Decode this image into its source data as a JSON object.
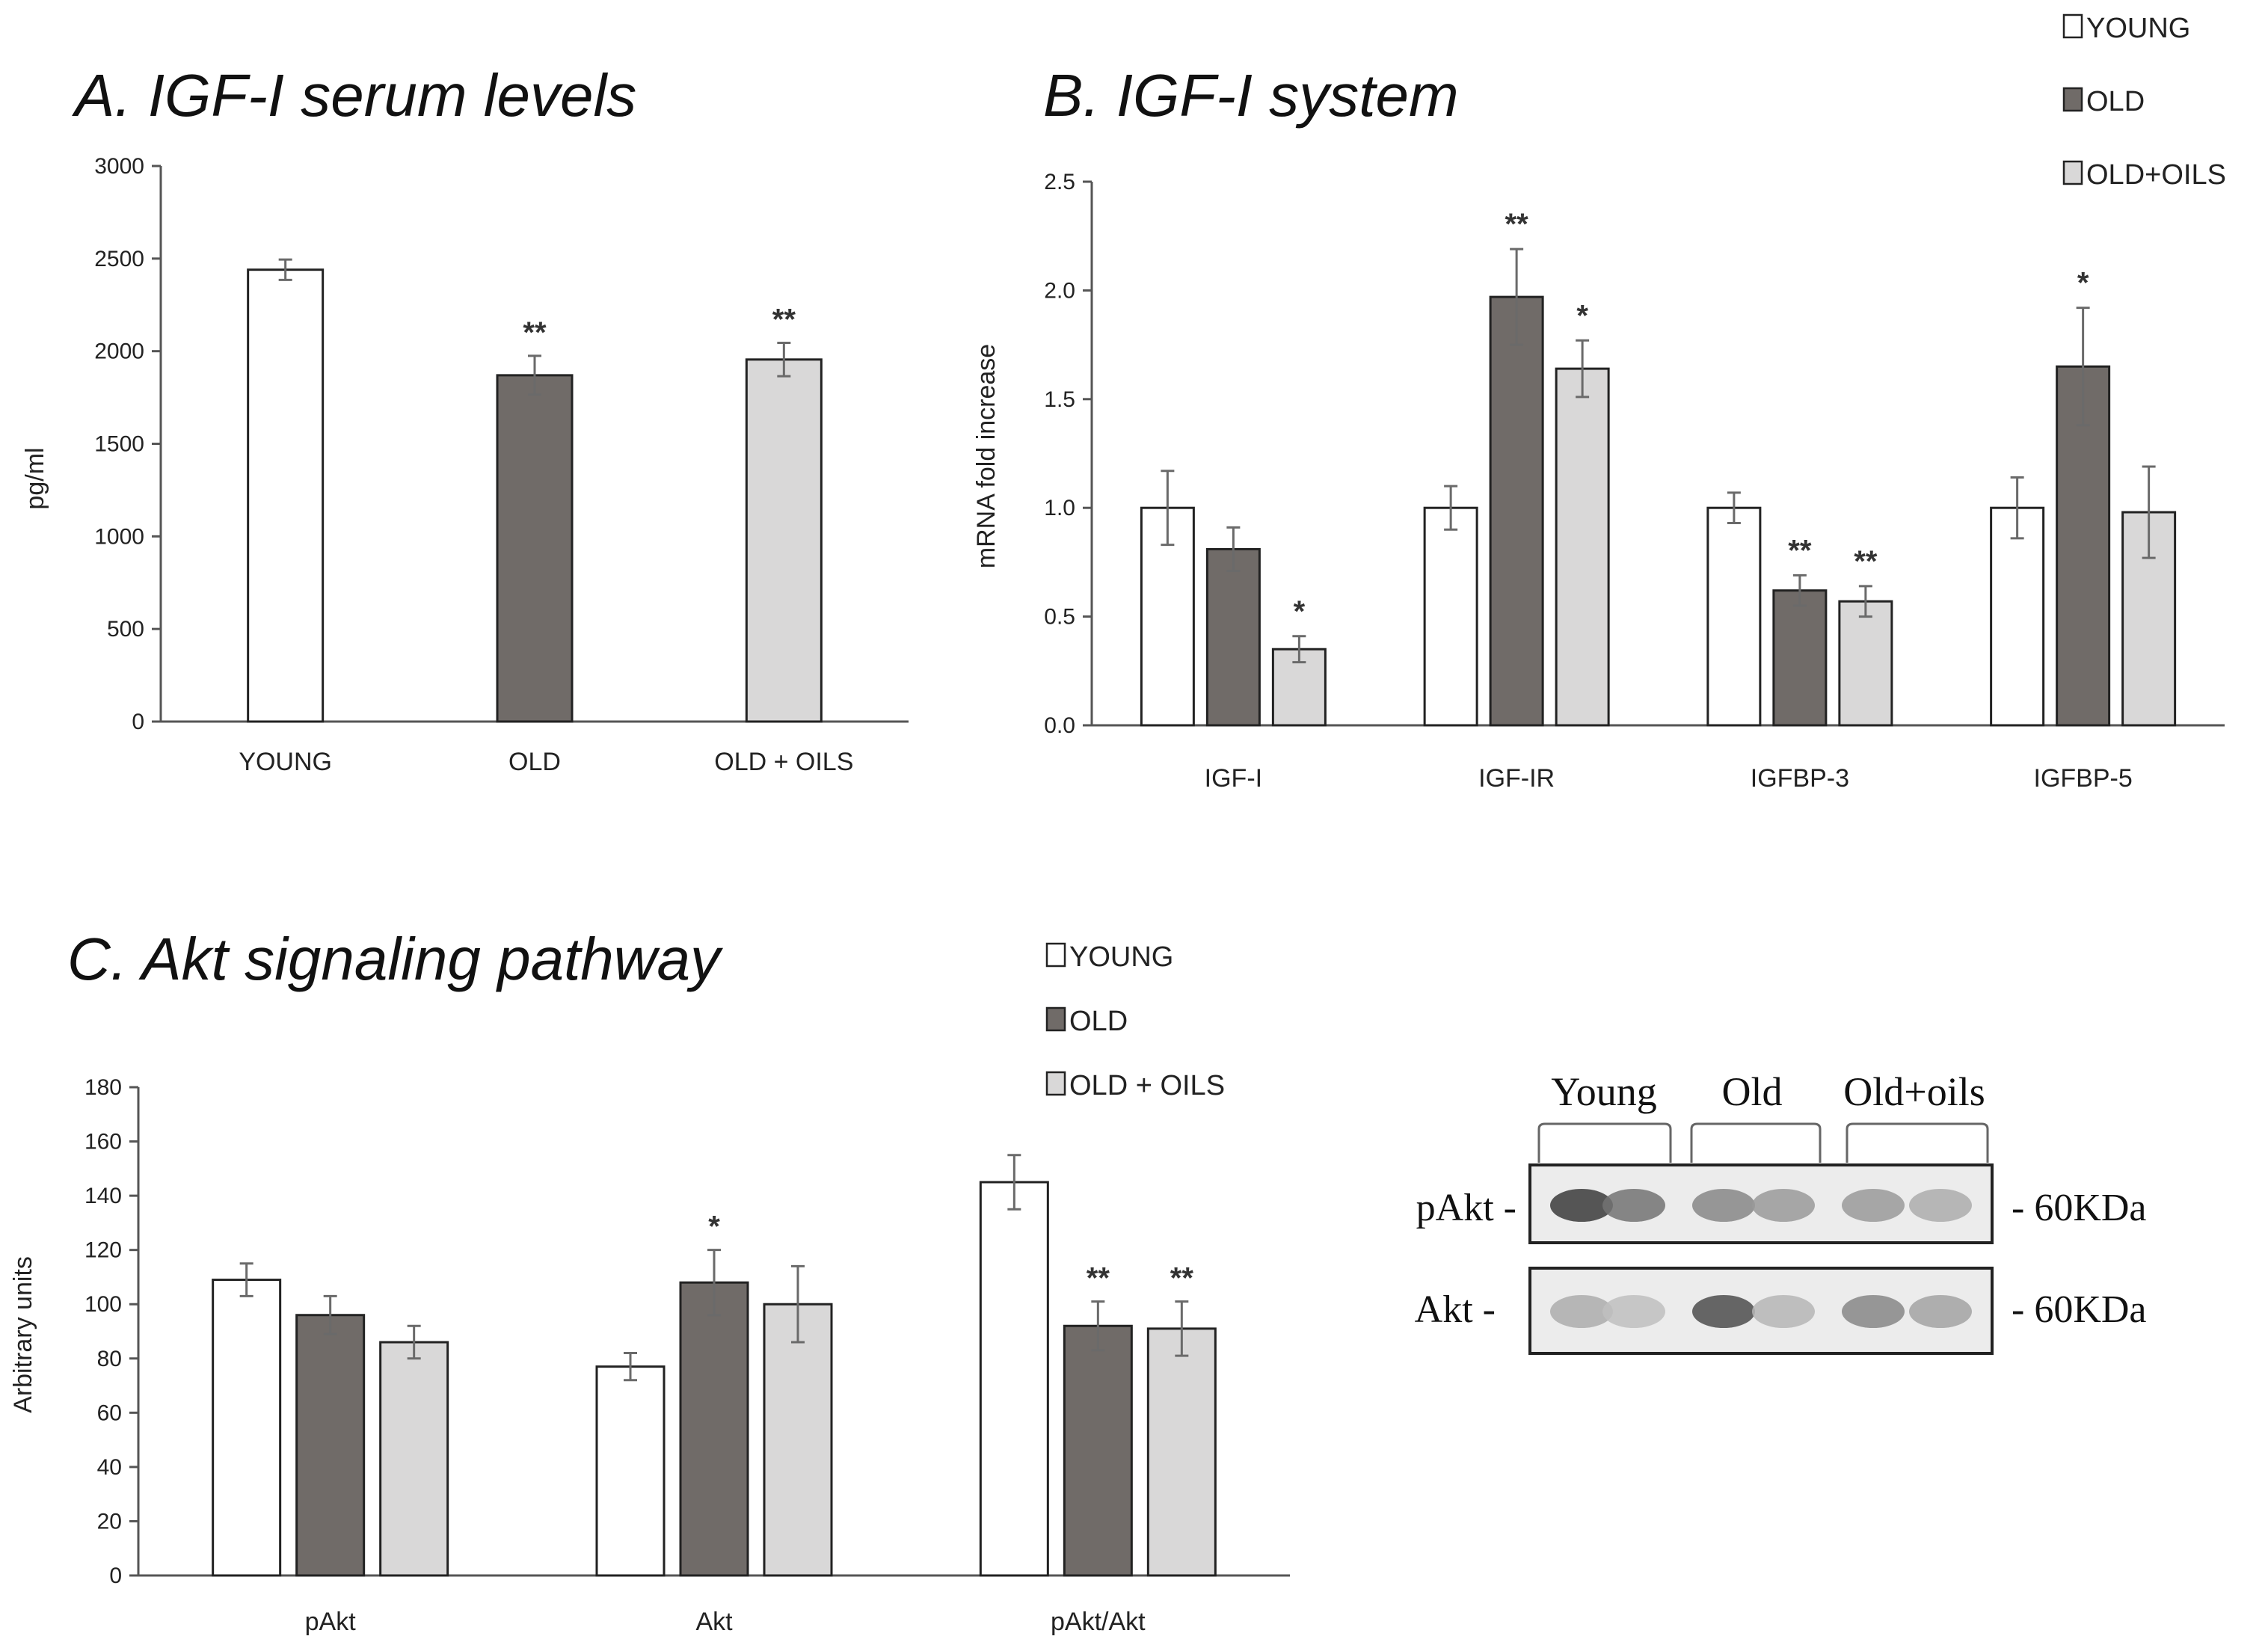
{
  "legend_labels": {
    "panel_b": [
      "YOUNG",
      "OLD",
      "OLD+OILS"
    ],
    "panel_c": [
      "YOUNG",
      "OLD",
      "OLD + OILS"
    ]
  },
  "colors": {
    "young": "#ffffff",
    "old": "#706b68",
    "oils": "#d9d8d8",
    "stroke": "#222222",
    "error": "#6a6a6a"
  },
  "chart_data": [
    {
      "id": "A",
      "type": "bar",
      "title": "A. IGF-I serum levels",
      "xlabel": "",
      "ylabel": "pg/ml",
      "ylim": [
        0,
        3000
      ],
      "yticks": [
        0,
        500,
        1000,
        1500,
        2000,
        2500,
        3000
      ],
      "tick_decimals": 0,
      "categories": [
        "YOUNG",
        "OLD",
        "OLD + OILS"
      ],
      "series": [
        {
          "name": "value",
          "values": [
            2440,
            1870,
            1955
          ],
          "errors": [
            55,
            105,
            90
          ],
          "signif": [
            "",
            "**",
            "**"
          ],
          "colors": [
            "young",
            "old",
            "oils"
          ]
        }
      ]
    },
    {
      "id": "B",
      "type": "bar",
      "title": "B. IGF-I system",
      "xlabel": "",
      "ylabel": "mRNA fold increase",
      "ylim": [
        0,
        2.5
      ],
      "yticks": [
        0,
        0.5,
        1,
        1.5,
        2,
        2.5
      ],
      "tick_decimals": 1,
      "categories": [
        "IGF-I",
        "IGF-IR",
        "IGFBP-3",
        "IGFBP-5"
      ],
      "series": [
        {
          "name": "YOUNG",
          "values": [
            1.0,
            1.0,
            1.0,
            1.0
          ],
          "errors": [
            0.17,
            0.1,
            0.07,
            0.14
          ],
          "signif": [
            "",
            "",
            "",
            ""
          ]
        },
        {
          "name": "OLD",
          "values": [
            0.81,
            1.97,
            0.62,
            1.65
          ],
          "errors": [
            0.1,
            0.22,
            0.07,
            0.27
          ],
          "signif": [
            "",
            "**",
            "**",
            "*"
          ]
        },
        {
          "name": "OLD+OILS",
          "values": [
            0.35,
            1.64,
            0.57,
            0.98
          ],
          "errors": [
            0.06,
            0.13,
            0.07,
            0.21
          ],
          "signif": [
            "*",
            "*",
            "**",
            ""
          ]
        }
      ]
    },
    {
      "id": "C",
      "type": "bar",
      "title": "C. Akt signaling pathway",
      "xlabel": "",
      "ylabel": "Arbitrary units",
      "ylim": [
        0,
        180
      ],
      "yticks": [
        0,
        20,
        40,
        60,
        80,
        100,
        120,
        140,
        160,
        180
      ],
      "tick_decimals": 0,
      "categories": [
        "pAkt",
        "Akt",
        "pAkt/Akt"
      ],
      "series": [
        {
          "name": "YOUNG",
          "values": [
            109,
            77,
            145
          ],
          "errors": [
            6,
            5,
            10
          ],
          "signif": [
            "",
            "",
            ""
          ]
        },
        {
          "name": "OLD",
          "values": [
            96,
            108,
            92
          ],
          "errors": [
            7,
            12,
            9
          ],
          "signif": [
            "",
            "*",
            "**"
          ]
        },
        {
          "name": "OLD + OILS",
          "values": [
            86,
            100,
            91
          ],
          "errors": [
            6,
            14,
            10
          ],
          "signif": [
            "",
            "",
            "**"
          ]
        }
      ]
    }
  ],
  "western_blot": {
    "groups": [
      "Young",
      "Old",
      "Old+oils"
    ],
    "rows": [
      {
        "label": "pAkt -",
        "size": "- 60KDa",
        "intensities": [
          0.85,
          0.55,
          0.45,
          0.35,
          0.35,
          0.25
        ]
      },
      {
        "label": "Akt -",
        "size": "- 60KDa",
        "intensities": [
          0.25,
          0.15,
          0.75,
          0.2,
          0.45,
          0.3
        ]
      }
    ]
  }
}
